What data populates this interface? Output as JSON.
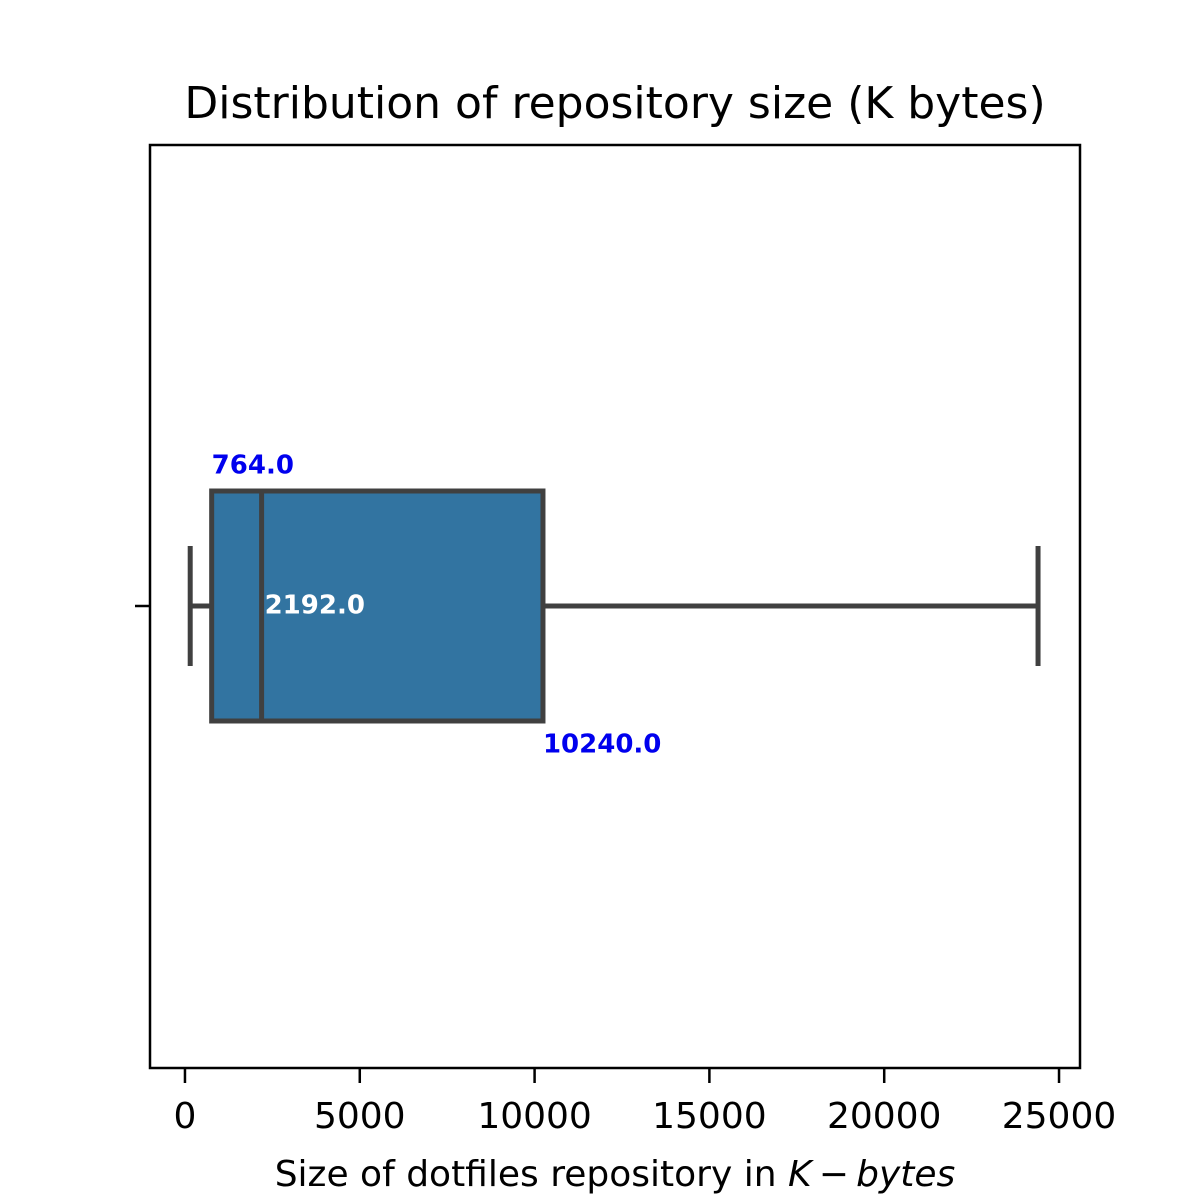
{
  "chart_data": {
    "type": "box",
    "title": "Distribution of repository size (K bytes)",
    "xlabel_prefix": "Size of dotfiles repository in ",
    "xlabel_var": "K − bytes",
    "xlim": [
      -1000,
      25600
    ],
    "xticks": [
      0,
      5000,
      10000,
      15000,
      20000,
      25000
    ],
    "xtick_labels": [
      "0",
      "5000",
      "10000",
      "15000",
      "20000",
      "25000"
    ],
    "box": {
      "whisker_low": 150,
      "q1": 764.0,
      "median": 2192.0,
      "q3": 10240.0,
      "whisker_high": 24400
    },
    "annotations": [
      {
        "label": "764.0",
        "value": 764.0,
        "color": "#0000ee",
        "placement": "above-left"
      },
      {
        "label": "2192.0",
        "value": 2192.0,
        "color": "#ffffff",
        "placement": "center"
      },
      {
        "label": "10240.0",
        "value": 10240.0,
        "color": "#0000ee",
        "placement": "below-right"
      }
    ],
    "box_color": "#3274a1",
    "line_color": "#404040"
  }
}
